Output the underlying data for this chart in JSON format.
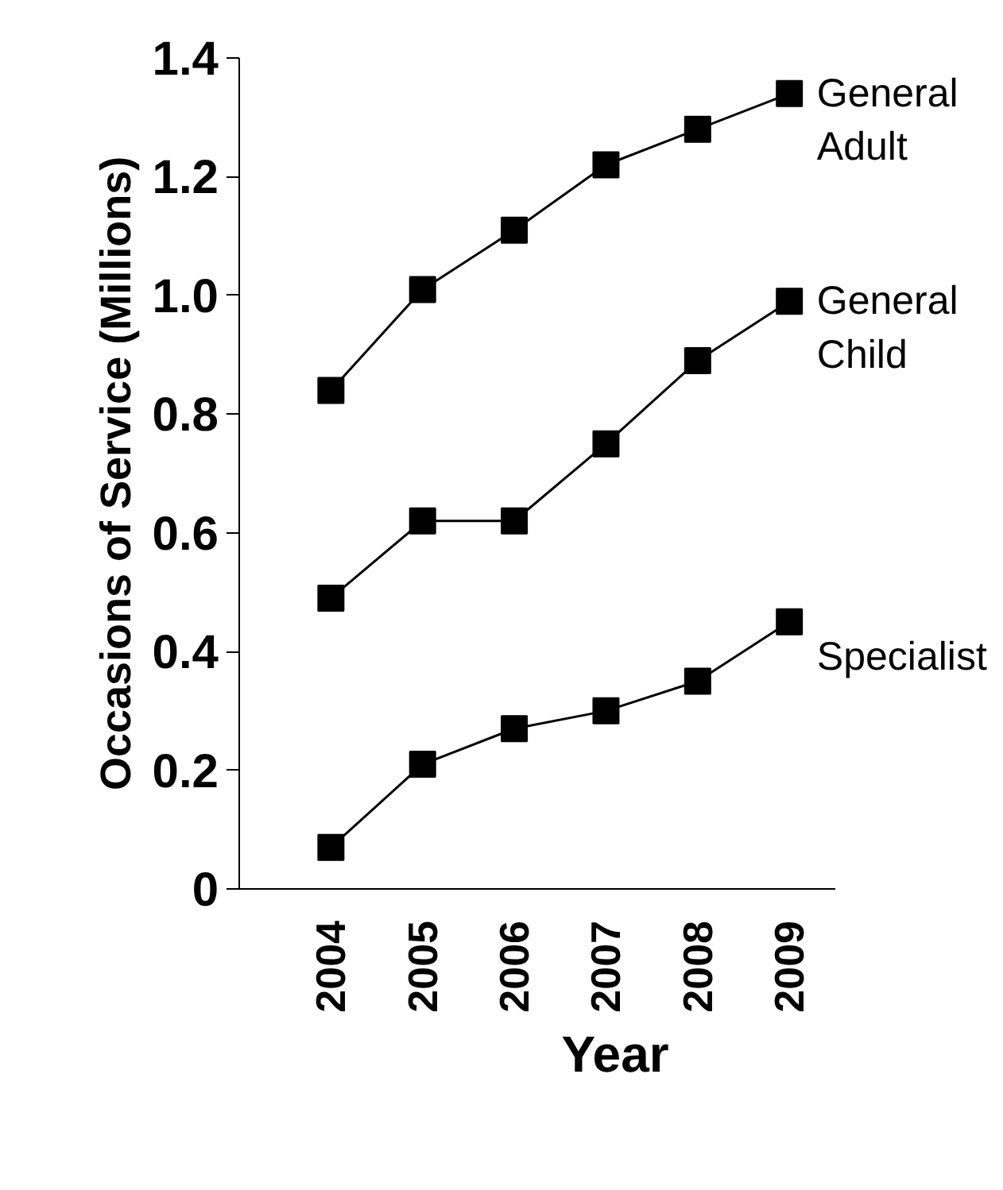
{
  "chart_data": {
    "type": "line",
    "xlabel": "Year",
    "ylabel": "Occasions of Service (Millions)",
    "categories": [
      "2004",
      "2005",
      "2006",
      "2007",
      "2008",
      "2009"
    ],
    "series": [
      {
        "name": "General Adult",
        "color": "#000000",
        "values": [
          0.84,
          1.01,
          1.11,
          1.22,
          1.28,
          1.34
        ]
      },
      {
        "name": "General Child",
        "color": "#000000",
        "values": [
          0.49,
          0.62,
          0.62,
          0.75,
          0.89,
          0.99
        ]
      },
      {
        "name": "Specialist",
        "color": "#000000",
        "values": [
          0.07,
          0.21,
          0.27,
          0.3,
          0.35,
          0.45
        ]
      }
    ],
    "ylim": [
      0,
      1.4
    ],
    "yticks": [
      {
        "value": 0,
        "label": "0"
      },
      0.2,
      0.4,
      0.6,
      0.8,
      {
        "value": 1.0,
        "label": "1.0"
      },
      1.2,
      1.4
    ],
    "grid": false,
    "legend": false,
    "marker": "square",
    "line_style": "solid"
  }
}
